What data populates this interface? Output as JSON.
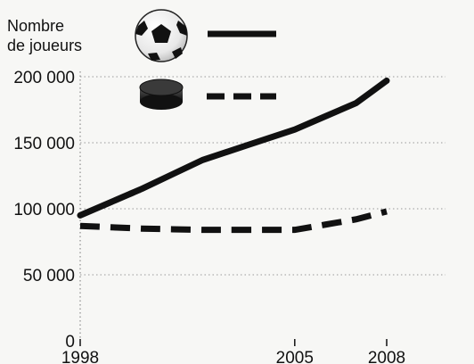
{
  "chart_data": {
    "type": "line",
    "ylabel": [
      "Nombre",
      "de joueurs"
    ],
    "x": [
      1998,
      2000,
      2002,
      2005,
      2007,
      2008
    ],
    "x_tick_labels": [
      "1998",
      "2005",
      "2008"
    ],
    "x_ticks": [
      1998,
      2005,
      2008
    ],
    "ylim": [
      0,
      200000
    ],
    "y_ticks": [
      0,
      50000,
      100000,
      150000,
      200000
    ],
    "y_tick_labels": [
      "0",
      "50 000",
      "100 000",
      "150 000",
      "200 000"
    ],
    "grid": "horizontal dotted",
    "legend_placement": "top",
    "series": [
      {
        "icon": "soccer-ball-icon",
        "style": "solid",
        "color": "#111111",
        "values": [
          95000,
          115000,
          137000,
          160000,
          180000,
          197000
        ]
      },
      {
        "icon": "hockey-puck-icon",
        "style": "dashed",
        "color": "#111111",
        "values": [
          87000,
          85000,
          84000,
          84000,
          92000,
          98000
        ]
      }
    ]
  }
}
